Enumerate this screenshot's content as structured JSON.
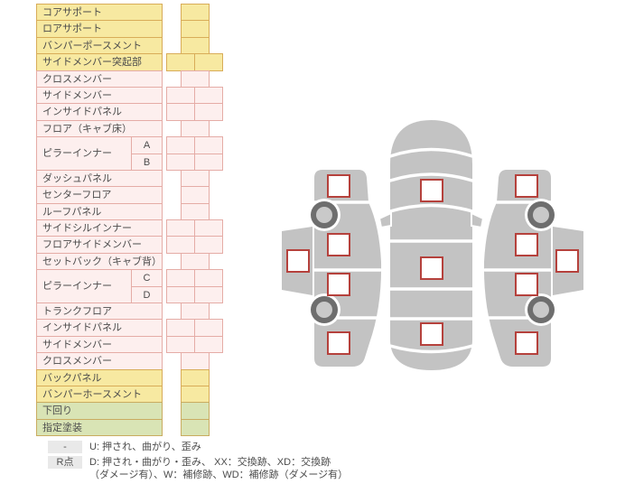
{
  "table": {
    "parts": [
      {
        "label": "コアサポート",
        "color": "yellow",
        "cells": 1
      },
      {
        "label": "ロアサポート",
        "color": "yellow",
        "cells": 1
      },
      {
        "label": "バンパーポースメント",
        "color": "yellow",
        "cells": 1
      },
      {
        "label": "サイドメンバー突起部",
        "color": "yellow",
        "cells": 2
      },
      {
        "label": "クロスメンバー",
        "color": "pink",
        "cells": 1
      },
      {
        "label": "サイドメンバー",
        "color": "pink",
        "cells": 2
      },
      {
        "label": "インサイドパネル",
        "color": "pink",
        "cells": 2
      },
      {
        "label": "フロア（キャブ床）",
        "color": "pink",
        "cells": 1
      },
      {
        "label": "ピラーインナー",
        "color": "pink",
        "cells": 2,
        "subs": [
          "A",
          "B"
        ]
      },
      {
        "label": "ダッシュパネル",
        "color": "pink",
        "cells": 1
      },
      {
        "label": "センターフロア",
        "color": "pink",
        "cells": 1
      },
      {
        "label": "ルーフパネル",
        "color": "pink",
        "cells": 1
      },
      {
        "label": "サイドシルインナー",
        "color": "pink",
        "cells": 2
      },
      {
        "label": "フロアサイドメンバー",
        "color": "pink",
        "cells": 2
      },
      {
        "label": "セットバック（キャブ背）",
        "color": "pink",
        "cells": 1
      },
      {
        "label": "ピラーインナー",
        "color": "pink",
        "cells": 2,
        "subs": [
          "C",
          "D"
        ]
      },
      {
        "label": "トランクフロア",
        "color": "pink",
        "cells": 1
      },
      {
        "label": "インサイドパネル",
        "color": "pink",
        "cells": 2
      },
      {
        "label": "サイドメンバー",
        "color": "pink",
        "cells": 2
      },
      {
        "label": "クロスメンバー",
        "color": "pink",
        "cells": 1
      },
      {
        "label": "バックパネル",
        "color": "yellow",
        "cells": 1
      },
      {
        "label": "バンパーホースメント",
        "color": "yellow",
        "cells": 1
      },
      {
        "label": "下回り",
        "color": "green",
        "cells": 1
      },
      {
        "label": "指定塗装",
        "color": "green",
        "cells": 1
      }
    ]
  },
  "legend": {
    "rows": [
      {
        "badge": "-",
        "lines": [
          "U: 押され、曲がり、歪み"
        ]
      },
      {
        "badge": "R点",
        "lines": [
          "D: 押され・曲がり・歪み、 XX：交換跡、XD：交換跡",
          "（ダメージ有）、W：補修跡、WD：補修跡（ダメージ有）"
        ]
      }
    ]
  },
  "diagram": {
    "views": [
      "left-side-view",
      "top-view",
      "right-side-view"
    ],
    "marker_count": 13
  },
  "colors": {
    "row_yellow": "#F7E9A1",
    "row_yellow_border": "#D8AC58",
    "row_pink": "#FDEFEE",
    "row_pink_border": "#E5ACA6",
    "row_green": "#D9E4B5",
    "row_green_border": "#C9AC60",
    "legend_badge_bg": "#E9E9E9",
    "car_body": "#C3C3C3",
    "wheel_dark": "#6E6E6E",
    "wheel_light": "#C9C9C9",
    "marker_border": "#B5413C"
  }
}
